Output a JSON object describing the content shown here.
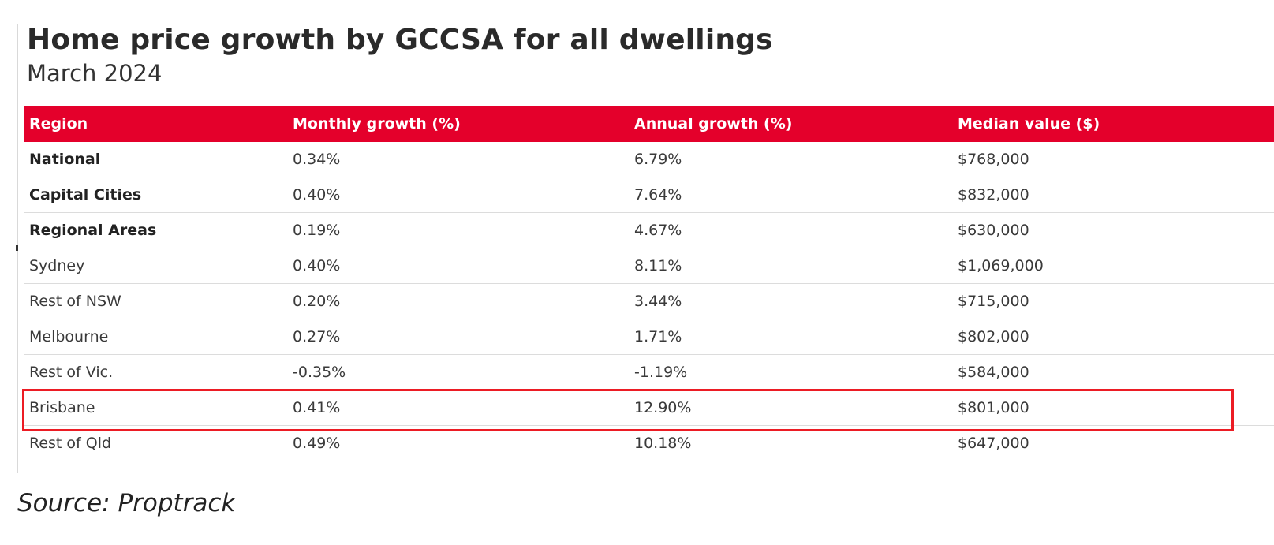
{
  "title": "Home price growth by GCCSA for all dwellings",
  "subtitle": "March 2024",
  "source": "Source: Proptrack",
  "colors": {
    "header_bg": "#e4002b",
    "header_text": "#ffffff",
    "highlight_border": "#ec1c24"
  },
  "highlighted_row": "Brisbane",
  "chart_data": {
    "type": "table",
    "title": "Home price growth by GCCSA for all dwellings",
    "subtitle": "March 2024",
    "columns": [
      "Region",
      "Monthly growth (%)",
      "Annual growth (%)",
      "Median value ($)"
    ],
    "rows": [
      {
        "region": "National",
        "monthly": "0.34%",
        "annual": "6.79%",
        "median": "$768,000",
        "bold": true
      },
      {
        "region": "Capital Cities",
        "monthly": "0.40%",
        "annual": "7.64%",
        "median": "$832,000",
        "bold": true
      },
      {
        "region": "Regional Areas",
        "monthly": "0.19%",
        "annual": "4.67%",
        "median": "$630,000",
        "bold": true
      },
      {
        "region": "Sydney",
        "monthly": "0.40%",
        "annual": "8.11%",
        "median": "$1,069,000",
        "bold": false
      },
      {
        "region": "Rest of NSW",
        "monthly": "0.20%",
        "annual": "3.44%",
        "median": "$715,000",
        "bold": false
      },
      {
        "region": "Melbourne",
        "monthly": "0.27%",
        "annual": "1.71%",
        "median": "$802,000",
        "bold": false
      },
      {
        "region": "Rest of Vic.",
        "monthly": "-0.35%",
        "annual": "-1.19%",
        "median": "$584,000",
        "bold": false
      },
      {
        "region": "Brisbane",
        "monthly": "0.41%",
        "annual": "12.90%",
        "median": "$801,000",
        "bold": false
      },
      {
        "region": "Rest of Qld",
        "monthly": "0.49%",
        "annual": "10.18%",
        "median": "$647,000",
        "bold": false
      }
    ]
  }
}
